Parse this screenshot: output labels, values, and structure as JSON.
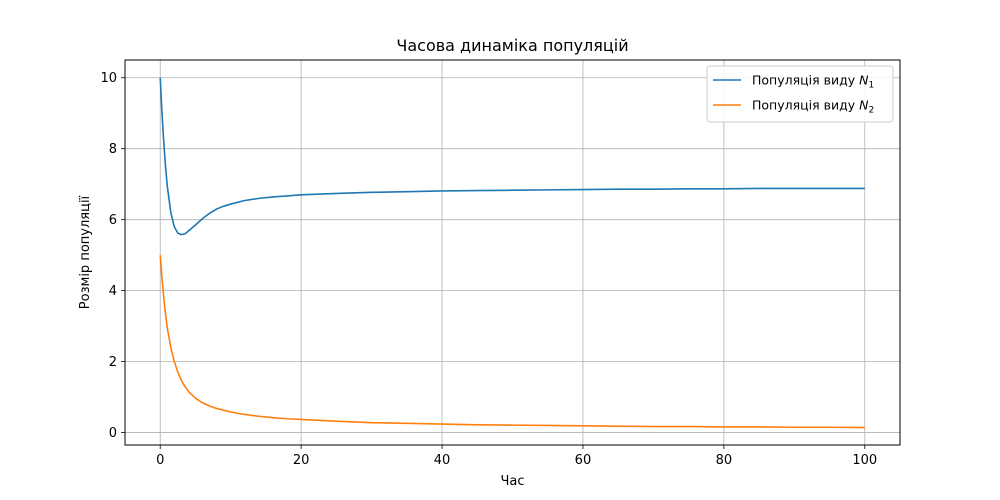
{
  "chart_data": {
    "type": "line",
    "title": "Часова динаміка популяцій",
    "xlabel": "Час",
    "ylabel": "Розмір популяції",
    "xlim": [
      -5,
      105
    ],
    "ylim": [
      -0.35,
      10.5
    ],
    "xticks": [
      0,
      20,
      40,
      60,
      80,
      100
    ],
    "yticks": [
      0,
      2,
      4,
      6,
      8,
      10
    ],
    "xtick_labels": [
      "0",
      "20",
      "40",
      "60",
      "80",
      "100"
    ],
    "ytick_labels": [
      "0",
      "2",
      "4",
      "6",
      "8",
      "10"
    ],
    "grid": true,
    "legend_position": "top-right",
    "series": [
      {
        "name": "Популяція виду N1",
        "legend_main": "Популяція виду ",
        "legend_var": "N",
        "legend_sub": "1",
        "color": "#1f77b4",
        "x": [
          0,
          0.25,
          0.5,
          0.75,
          1,
          1.5,
          2,
          2.5,
          3,
          3.5,
          4,
          5,
          6,
          7,
          8,
          9,
          10,
          12,
          14,
          16,
          18,
          20,
          25,
          30,
          35,
          40,
          45,
          50,
          55,
          60,
          65,
          70,
          75,
          80,
          85,
          90,
          95,
          100
        ],
        "y": [
          10.0,
          9.0,
          8.2,
          7.5,
          6.95,
          6.2,
          5.8,
          5.62,
          5.58,
          5.6,
          5.68,
          5.85,
          6.03,
          6.18,
          6.3,
          6.38,
          6.44,
          6.54,
          6.6,
          6.64,
          6.67,
          6.7,
          6.74,
          6.77,
          6.79,
          6.81,
          6.82,
          6.83,
          6.84,
          6.85,
          6.86,
          6.86,
          6.87,
          6.87,
          6.88,
          6.88,
          6.88,
          6.88
        ]
      },
      {
        "name": "Популяція виду N2",
        "legend_main": "Популяція виду ",
        "legend_var": "N",
        "legend_sub": "2",
        "color": "#ff7f0e",
        "x": [
          0,
          0.25,
          0.5,
          0.75,
          1,
          1.5,
          2,
          2.5,
          3,
          3.5,
          4,
          5,
          6,
          7,
          8,
          9,
          10,
          12,
          14,
          16,
          18,
          20,
          25,
          30,
          35,
          40,
          45,
          50,
          55,
          60,
          65,
          70,
          75,
          80,
          85,
          90,
          95,
          100
        ],
        "y": [
          5.0,
          4.35,
          3.8,
          3.35,
          2.95,
          2.4,
          2.0,
          1.7,
          1.47,
          1.3,
          1.16,
          0.97,
          0.84,
          0.75,
          0.68,
          0.63,
          0.58,
          0.51,
          0.46,
          0.42,
          0.39,
          0.37,
          0.32,
          0.28,
          0.26,
          0.24,
          0.22,
          0.21,
          0.2,
          0.19,
          0.18,
          0.17,
          0.17,
          0.16,
          0.16,
          0.15,
          0.15,
          0.14
        ]
      }
    ]
  }
}
